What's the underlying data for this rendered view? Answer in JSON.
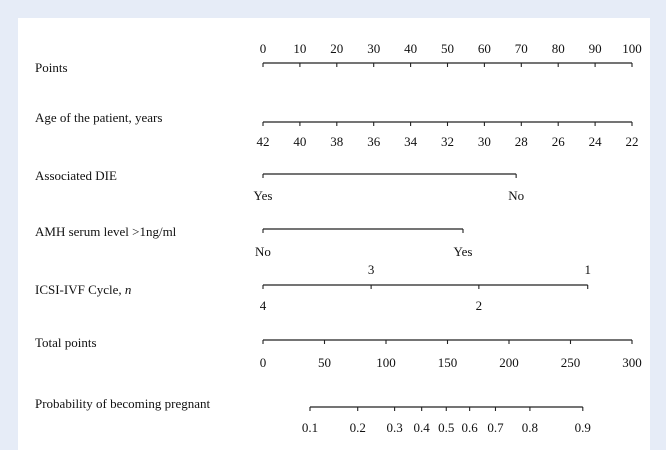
{
  "chart_data": {
    "type": "nomogram",
    "points_range": [
      0,
      100
    ],
    "total_range": [
      0,
      300
    ],
    "rows": [
      {
        "label": "Points",
        "scale": "points",
        "ticks": [
          0,
          10,
          20,
          30,
          40,
          50,
          60,
          70,
          80,
          90,
          100
        ],
        "positions": [
          0,
          10,
          20,
          30,
          40,
          50,
          60,
          70,
          80,
          90,
          100
        ]
      },
      {
        "label": "Age of the patient, years",
        "scale": "points",
        "ticks": [
          42,
          40,
          38,
          36,
          34,
          32,
          30,
          28,
          26,
          24,
          22
        ],
        "positions": [
          0,
          10,
          20,
          30,
          40,
          50,
          60,
          70,
          80,
          90,
          100
        ]
      },
      {
        "label": "Associated DIE",
        "scale": "points",
        "ticks": [
          "Yes",
          "No"
        ],
        "positions": [
          0,
          68.6
        ]
      },
      {
        "label": "AMH serum level >1ng/ml",
        "scale": "points",
        "ticks": [
          "No",
          "Yes"
        ],
        "positions": [
          0,
          54.2
        ]
      },
      {
        "label": "ICSI-IVF Cycle,",
        "label_variable": "n",
        "scale": "points",
        "ticks": [
          4,
          3,
          2,
          1
        ],
        "positions": [
          0,
          29.3,
          58.5,
          88
        ]
      },
      {
        "label": "Total points",
        "scale": "total",
        "ticks": [
          0,
          50,
          100,
          150,
          200,
          250,
          300
        ],
        "positions": [
          0,
          50,
          100,
          150,
          200,
          250,
          300
        ]
      },
      {
        "label": "Probability of becoming pregnant",
        "scale": "total",
        "ticks": [
          0.1,
          0.2,
          0.3,
          0.4,
          0.5,
          0.6,
          0.7,
          0.8,
          0.9
        ],
        "positions": [
          38.2,
          77,
          107,
          129,
          149,
          168,
          189,
          217,
          260
        ]
      }
    ]
  }
}
